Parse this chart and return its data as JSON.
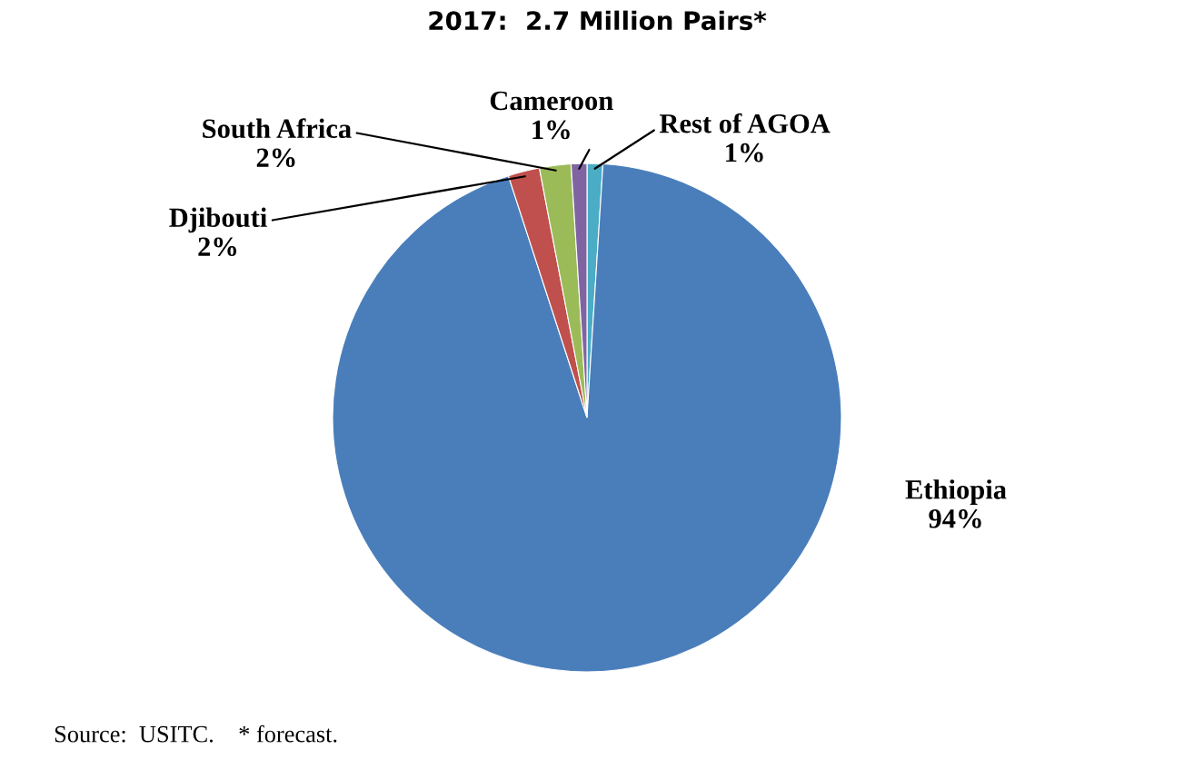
{
  "chart_data": {
    "type": "pie",
    "title": "2017:  2.7 Million Pairs*",
    "categories": [
      "Rest of AGOA",
      "Ethiopia",
      "Djibouti",
      "South Africa",
      "Cameroon"
    ],
    "values": [
      1,
      94,
      2,
      2,
      1
    ],
    "value_labels": [
      "1%",
      "94%",
      "2%",
      "2%",
      "1%"
    ],
    "colors": [
      "#4bacc6",
      "#4a7ebb",
      "#c0504d",
      "#9bbb59",
      "#8064a2"
    ],
    "annotations": [
      "Source:  USITC.    * forecast."
    ]
  }
}
